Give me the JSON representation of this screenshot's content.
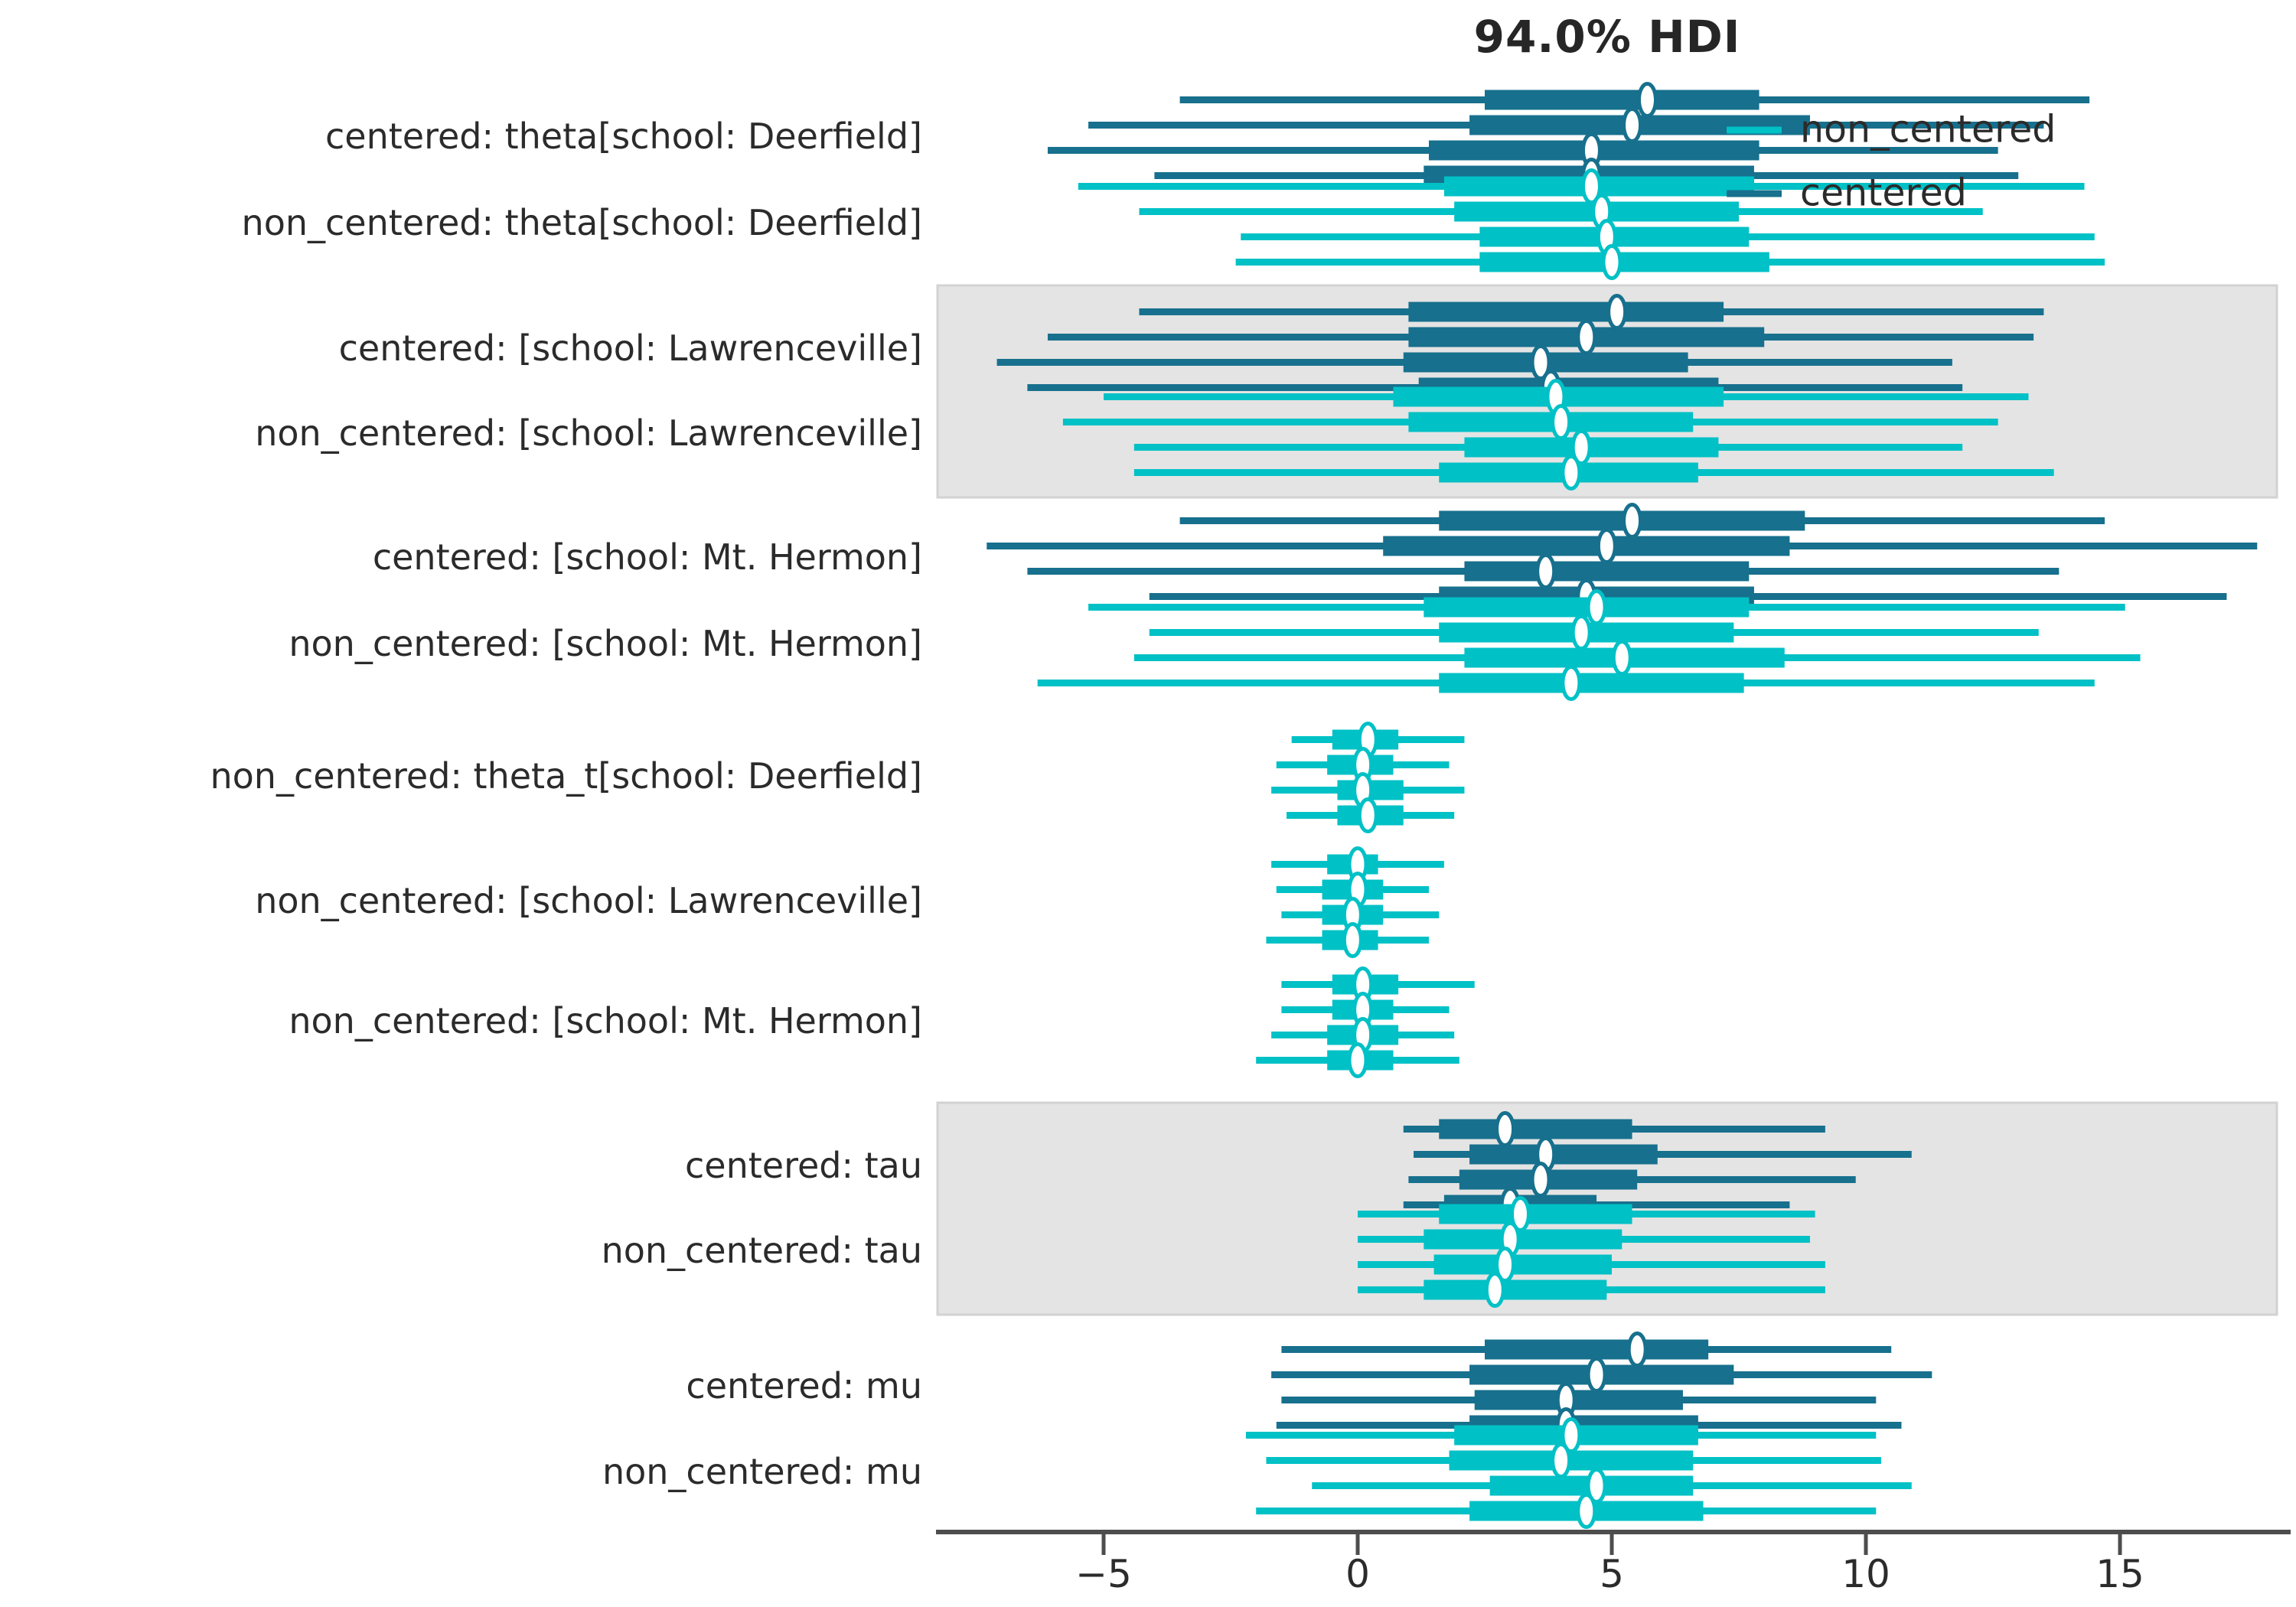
{
  "title": "94.0% HDI",
  "colors": {
    "centered": "#17708d",
    "non_centered": "#00c1c6",
    "band": "#e4e4e4",
    "band_border": "#d2d2d2",
    "axis": "#4d4d4d",
    "text": "#2b2b2b"
  },
  "legend": [
    {
      "label": "non_centered",
      "color": "#00c1c6"
    },
    {
      "label": "centered",
      "color": "#17708d"
    }
  ],
  "x_axis": {
    "ticks": [
      -5,
      0,
      5,
      10,
      15
    ],
    "tick_labels": [
      "−5",
      "0",
      "5",
      "10",
      "15"
    ],
    "range": [
      -8.3,
      18.4
    ]
  },
  "chart_data": {
    "type": "forest",
    "title": "94.0% HDI",
    "interval_note": "per row: 4 chains, each [hdi_low, thick_low, median, thick_high, hdi_high]",
    "models": [
      {
        "name": "centered",
        "color": "#17708d"
      },
      {
        "name": "non_centered",
        "color": "#00c1c6"
      }
    ],
    "groups": [
      {
        "shaded": false,
        "rows": [
          {
            "label": "centered: theta[school: Deerfield]",
            "model": "centered",
            "chains": [
              [
                -3.5,
                2.5,
                5.7,
                7.9,
                14.4
              ],
              [
                -5.3,
                2.2,
                5.4,
                8.9,
                13.5
              ],
              [
                -6.1,
                1.4,
                4.6,
                7.9,
                12.6
              ],
              [
                -4.0,
                1.3,
                4.6,
                7.8,
                13.0
              ]
            ]
          },
          {
            "label": "non_centered: theta[school: Deerfield]",
            "model": "non_centered",
            "chains": [
              [
                -5.5,
                1.7,
                4.6,
                7.8,
                14.3
              ],
              [
                -4.3,
                1.9,
                4.8,
                7.5,
                12.3
              ],
              [
                -2.3,
                2.4,
                4.9,
                7.7,
                14.5
              ],
              [
                -2.4,
                2.4,
                5.0,
                8.1,
                14.7
              ]
            ]
          }
        ]
      },
      {
        "shaded": true,
        "rows": [
          {
            "label": "centered: [school: Lawrenceville]",
            "model": "centered",
            "chains": [
              [
                -4.3,
                1.0,
                5.1,
                7.2,
                13.5
              ],
              [
                -6.1,
                1.0,
                4.5,
                8.0,
                13.3
              ],
              [
                -7.1,
                0.9,
                3.6,
                6.5,
                11.7
              ],
              [
                -6.5,
                1.2,
                3.8,
                7.1,
                11.9
              ]
            ]
          },
          {
            "label": "non_centered: [school: Lawrenceville]",
            "model": "non_centered",
            "chains": [
              [
                -5.0,
                0.7,
                3.9,
                7.2,
                13.2
              ],
              [
                -5.8,
                1.0,
                4.0,
                6.6,
                12.6
              ],
              [
                -4.4,
                2.1,
                4.4,
                7.1,
                11.9
              ],
              [
                -4.4,
                1.6,
                4.2,
                6.7,
                13.7
              ]
            ]
          }
        ]
      },
      {
        "shaded": false,
        "rows": [
          {
            "label": "centered: [school: Mt. Hermon]",
            "model": "centered",
            "chains": [
              [
                -3.5,
                1.6,
                5.4,
                8.8,
                14.7
              ],
              [
                -7.3,
                0.5,
                4.9,
                8.5,
                17.7
              ],
              [
                -6.5,
                2.1,
                3.7,
                7.7,
                13.8
              ],
              [
                -4.1,
                1.6,
                4.5,
                7.8,
                17.1
              ]
            ]
          },
          {
            "label": "non_centered: [school: Mt. Hermon]",
            "model": "non_centered",
            "chains": [
              [
                -5.3,
                1.3,
                4.7,
                7.7,
                15.1
              ],
              [
                -4.1,
                1.6,
                4.4,
                7.4,
                13.4
              ],
              [
                -4.4,
                2.1,
                5.2,
                8.4,
                15.4
              ],
              [
                -6.3,
                1.6,
                4.2,
                7.6,
                14.5
              ]
            ]
          }
        ]
      },
      {
        "shaded": false,
        "rows": [
          {
            "label": "non_centered: theta_t[school: Deerfield]",
            "model": "non_centered",
            "chains": [
              [
                -1.3,
                -0.5,
                0.2,
                0.8,
                2.1
              ],
              [
                -1.6,
                -0.6,
                0.1,
                0.7,
                1.8
              ],
              [
                -1.7,
                -0.4,
                0.1,
                0.9,
                2.1
              ],
              [
                -1.4,
                -0.4,
                0.2,
                0.9,
                1.9
              ]
            ]
          }
        ]
      },
      {
        "shaded": false,
        "rows": [
          {
            "label": "non_centered: [school: Lawrenceville]",
            "model": "non_centered",
            "chains": [
              [
                -1.7,
                -0.6,
                0.0,
                0.4,
                1.7
              ],
              [
                -1.6,
                -0.7,
                0.0,
                0.5,
                1.4
              ],
              [
                -1.5,
                -0.7,
                -0.1,
                0.5,
                1.6
              ],
              [
                -1.8,
                -0.7,
                -0.1,
                0.4,
                1.4
              ]
            ]
          }
        ]
      },
      {
        "shaded": false,
        "rows": [
          {
            "label": "non_centered: [school: Mt. Hermon]",
            "model": "non_centered",
            "chains": [
              [
                -1.5,
                -0.5,
                0.1,
                0.8,
                2.3
              ],
              [
                -1.5,
                -0.5,
                0.1,
                0.7,
                1.8
              ],
              [
                -1.7,
                -0.6,
                0.1,
                0.8,
                1.9
              ],
              [
                -2.0,
                -0.6,
                0.0,
                0.7,
                2.0
              ]
            ]
          }
        ]
      },
      {
        "shaded": true,
        "rows": [
          {
            "label": "centered: tau",
            "model": "centered",
            "chains": [
              [
                0.9,
                1.6,
                2.9,
                5.4,
                9.2
              ],
              [
                1.1,
                2.2,
                3.7,
                5.9,
                10.9
              ],
              [
                1.0,
                2.0,
                3.6,
                5.5,
                9.8
              ],
              [
                0.9,
                1.7,
                3.0,
                4.7,
                8.5
              ]
            ]
          },
          {
            "label": "non_centered: tau",
            "model": "non_centered",
            "chains": [
              [
                0.0,
                1.6,
                3.2,
                5.4,
                9.0
              ],
              [
                0.0,
                1.3,
                3.0,
                5.2,
                8.9
              ],
              [
                0.0,
                1.5,
                2.9,
                5.0,
                9.2
              ],
              [
                0.0,
                1.3,
                2.7,
                4.9,
                9.2
              ]
            ]
          }
        ]
      },
      {
        "shaded": false,
        "rows": [
          {
            "label": "centered: mu",
            "model": "centered",
            "chains": [
              [
                -1.5,
                2.5,
                5.5,
                6.9,
                10.5
              ],
              [
                -1.7,
                2.2,
                4.7,
                7.4,
                11.3
              ],
              [
                -1.5,
                2.3,
                4.1,
                6.4,
                10.2
              ],
              [
                -1.6,
                2.2,
                4.1,
                6.7,
                10.7
              ]
            ]
          },
          {
            "label": "non_centered: mu",
            "model": "non_centered",
            "chains": [
              [
                -2.2,
                1.9,
                4.2,
                6.7,
                10.2
              ],
              [
                -1.8,
                1.8,
                4.0,
                6.6,
                10.3
              ],
              [
                -0.9,
                2.6,
                4.7,
                6.6,
                10.9
              ],
              [
                -2.0,
                2.2,
                4.5,
                6.8,
                10.2
              ]
            ]
          }
        ]
      }
    ]
  }
}
